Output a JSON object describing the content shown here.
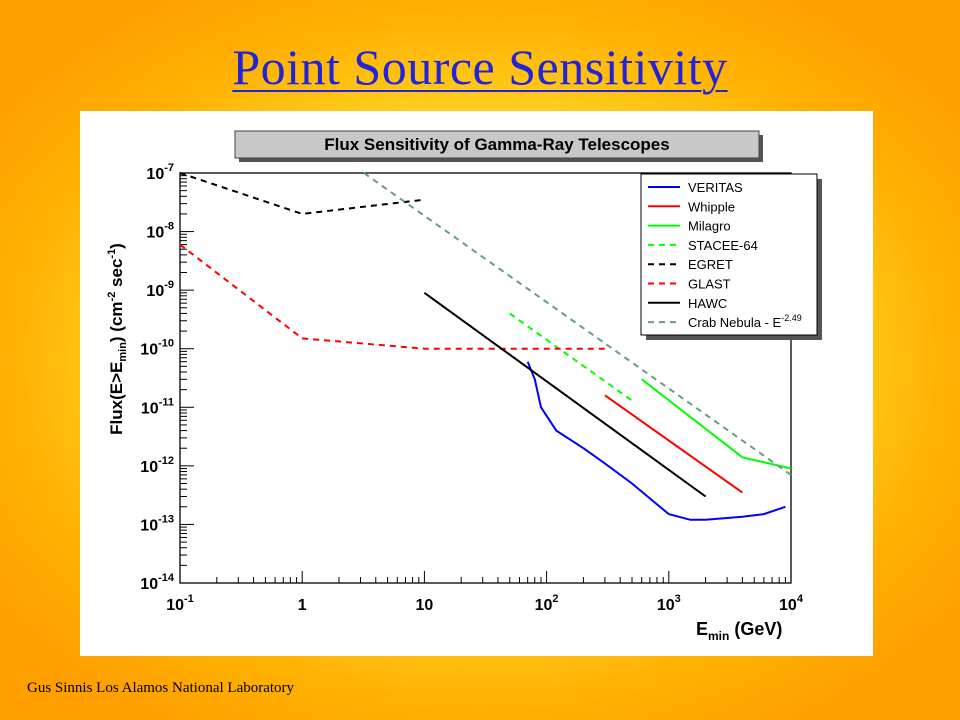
{
  "slide": {
    "title": "Point Source Sensitivity",
    "footer": "Gus Sinnis Los Alamos National Laboratory"
  },
  "colors": {
    "title": "#2323d8",
    "background_center": "#fff8a0",
    "background_edge": "#ff9f00"
  },
  "chart_data": {
    "type": "line",
    "title": "Flux Sensitivity of Gamma-Ray Telescopes",
    "xlabel": "E_min (GeV)",
    "ylabel": "Flux(E>E_min) (cm^-2 sec^-1)",
    "x_scale": "log",
    "y_scale": "log",
    "xlim": [
      0.1,
      10000
    ],
    "ylim": [
      1e-14,
      1e-07
    ],
    "grid": false,
    "legend_position": "top-right",
    "x_ticks": [
      {
        "value": 0.1,
        "base": "10",
        "exp": "-1"
      },
      {
        "value": 1,
        "base": "1",
        "exp": ""
      },
      {
        "value": 10,
        "base": "10",
        "exp": ""
      },
      {
        "value": 100,
        "base": "10",
        "exp": "2"
      },
      {
        "value": 1000,
        "base": "10",
        "exp": "3"
      },
      {
        "value": 10000,
        "base": "10",
        "exp": "4"
      }
    ],
    "y_ticks": [
      {
        "value": 1e-07,
        "base": "10",
        "exp": "-7"
      },
      {
        "value": 1e-08,
        "base": "10",
        "exp": "-8"
      },
      {
        "value": 1e-09,
        "base": "10",
        "exp": "-9"
      },
      {
        "value": 1e-10,
        "base": "10",
        "exp": "-10"
      },
      {
        "value": 1e-11,
        "base": "10",
        "exp": "-11"
      },
      {
        "value": 1e-12,
        "base": "10",
        "exp": "-12"
      },
      {
        "value": 1e-13,
        "base": "10",
        "exp": "-13"
      },
      {
        "value": 1e-14,
        "base": "10",
        "exp": "-14"
      }
    ],
    "series": [
      {
        "name": "VERITAS",
        "color": "#0000ff",
        "dash": "solid",
        "points": [
          [
            70,
            6e-11
          ],
          [
            80,
            3e-11
          ],
          [
            90,
            1e-11
          ],
          [
            120,
            4e-12
          ],
          [
            200,
            2e-12
          ],
          [
            300,
            1.1e-12
          ],
          [
            500,
            5e-13
          ],
          [
            800,
            2.2e-13
          ],
          [
            1000,
            1.5e-13
          ],
          [
            1500,
            1.2e-13
          ],
          [
            2000,
            1.2e-13
          ],
          [
            4000,
            1.35e-13
          ],
          [
            6000,
            1.5e-13
          ],
          [
            9000,
            2e-13
          ]
        ]
      },
      {
        "name": "Whipple",
        "color": "#ff0000",
        "dash": "solid",
        "points": [
          [
            300,
            1.6e-11
          ],
          [
            4000,
            3.5e-13
          ]
        ]
      },
      {
        "name": "Milagro",
        "color": "#00ff00",
        "dash": "solid",
        "points": [
          [
            600,
            3e-11
          ],
          [
            4000,
            1.4e-12
          ],
          [
            10000,
            9e-13
          ]
        ]
      },
      {
        "name": "STACEE-64",
        "color": "#00ff00",
        "dash": "dashed",
        "points": [
          [
            50,
            4e-10
          ],
          [
            500,
            1.3e-11
          ]
        ]
      },
      {
        "name": "EGRET",
        "color": "#000000",
        "dash": "dashed",
        "points": [
          [
            0.1,
            1e-07
          ],
          [
            1,
            2e-08
          ],
          [
            10,
            3.5e-08
          ]
        ]
      },
      {
        "name": "GLAST",
        "color": "#ff0000",
        "dash": "dashed",
        "points": [
          [
            0.1,
            6e-09
          ],
          [
            1,
            1.5e-10
          ],
          [
            10,
            1e-10
          ],
          [
            300,
            1e-10
          ]
        ]
      },
      {
        "name": "HAWC",
        "color": "#000000",
        "dash": "solid",
        "points": [
          [
            10,
            9e-10
          ],
          [
            2000,
            3e-13
          ]
        ]
      },
      {
        "name": "Crab Nebula - E",
        "name_sup": "-2.49",
        "color": "#6a9a8a",
        "dash": "dashed",
        "points": [
          [
            3.2,
            1e-07
          ],
          [
            10000,
            7e-13
          ]
        ]
      }
    ]
  }
}
